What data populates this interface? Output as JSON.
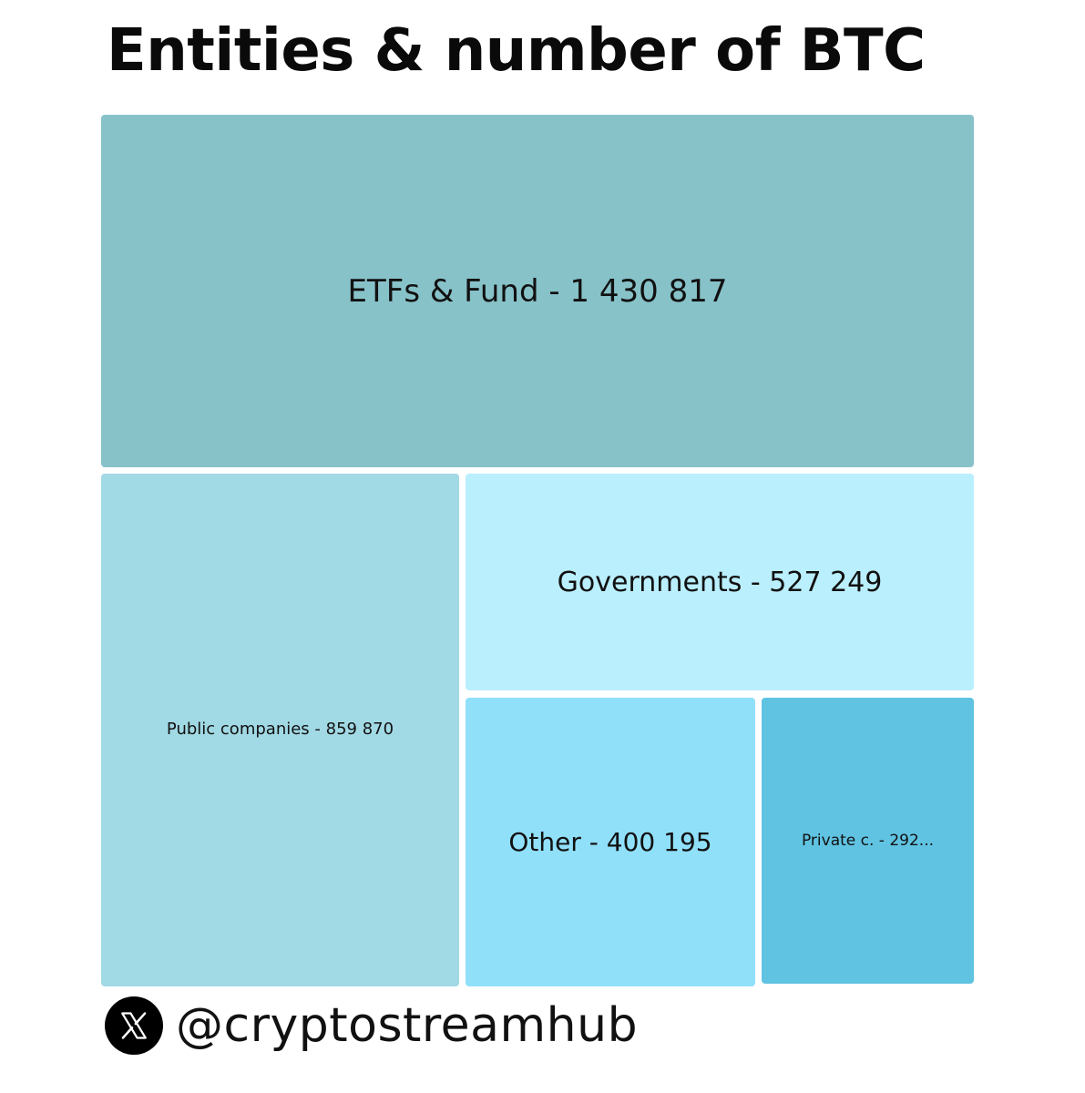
{
  "chart_data": {
    "type": "treemap",
    "title": "Entities & number of BTC",
    "items": [
      {
        "label": "ETFs & Fund - 1 430 817",
        "name": "ETFs & Fund",
        "value": 1430817,
        "color": "#87c2c9"
      },
      {
        "label": "Public companies - 859 870",
        "name": "Public companies",
        "value": 859870,
        "color": "#a1d9e4"
      },
      {
        "label": "Governments - 527 249",
        "name": "Governments",
        "value": 527249,
        "color": "#baeffd"
      },
      {
        "label": "Other - 400 195",
        "name": "Other",
        "value": 400195,
        "color": "#90e0fa"
      },
      {
        "label": "Private c. - 292...",
        "name": "Private c.",
        "value": 292000,
        "color": "#60c3e2"
      }
    ]
  },
  "footer": {
    "icon": "x-logo-icon",
    "handle": "@cryptostreamhub"
  }
}
